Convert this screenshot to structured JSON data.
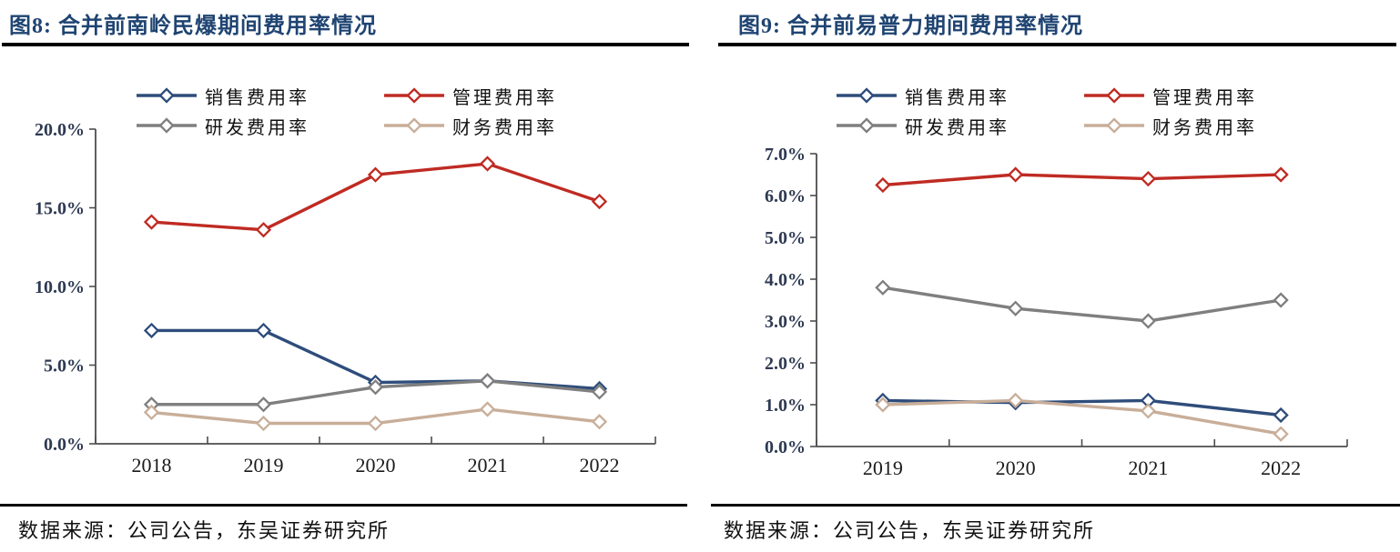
{
  "source_note": "数据来源：公司公告，东吴证券研究所",
  "colors": {
    "title_navy": "#1f4472",
    "axis_line": "#4d4d4d",
    "ytick_text": "#2e3a52",
    "xtick_text": "#1a1a1a",
    "rule_black": "#000000",
    "series_sales_blue": "#2e4d7b",
    "series_management_red": "#bf2b23",
    "series_rd_gray": "#7f7f7f",
    "series_finance_tan": "#c8ae99"
  },
  "chart_data": [
    {
      "type": "line",
      "title": "图8:  合并前南岭民爆期间费用率情况",
      "categories": [
        "2018",
        "2019",
        "2020",
        "2021",
        "2022"
      ],
      "series": [
        {
          "key": "sales-expense-ratio",
          "name": "销售费用率",
          "color": "#2e4d7b",
          "values": [
            7.2,
            7.2,
            3.9,
            4.0,
            3.5
          ]
        },
        {
          "key": "management-expense-ratio",
          "name": "管理费用率",
          "color": "#bf2b23",
          "values": [
            14.1,
            13.6,
            17.1,
            17.8,
            15.4
          ]
        },
        {
          "key": "rd-expense-ratio",
          "name": "研发费用率",
          "color": "#7f7f7f",
          "values": [
            2.5,
            2.5,
            3.6,
            4.0,
            3.3
          ]
        },
        {
          "key": "finance-expense-ratio",
          "name": "财务费用率",
          "color": "#c8ae99",
          "values": [
            2.0,
            1.3,
            1.3,
            2.2,
            1.4
          ]
        }
      ],
      "ylim": [
        0,
        20
      ],
      "ytick_step": 5,
      "ytick_labels": [
        "0.0%",
        "5.0%",
        "10.0%",
        "15.0%",
        "20.0%"
      ],
      "xlabel": "",
      "ylabel": "",
      "grid": false,
      "legend_position": "top",
      "marker": "open-diamond"
    },
    {
      "type": "line",
      "title": "图9:  合并前易普力期间费用率情况",
      "categories": [
        "2019",
        "2020",
        "2021",
        "2022"
      ],
      "series": [
        {
          "key": "sales-expense-ratio",
          "name": "销售费用率",
          "color": "#2e4d7b",
          "values": [
            1.1,
            1.05,
            1.1,
            0.75
          ]
        },
        {
          "key": "management-expense-ratio",
          "name": "管理费用率",
          "color": "#bf2b23",
          "values": [
            6.25,
            6.5,
            6.4,
            6.5
          ]
        },
        {
          "key": "rd-expense-ratio",
          "name": "研发费用率",
          "color": "#7f7f7f",
          "values": [
            3.8,
            3.3,
            3.0,
            3.5
          ]
        },
        {
          "key": "finance-expense-ratio",
          "name": "财务费用率",
          "color": "#c8ae99",
          "values": [
            1.0,
            1.1,
            0.85,
            0.3
          ]
        }
      ],
      "ylim": [
        0,
        7
      ],
      "ytick_step": 1,
      "ytick_labels": [
        "0.0%",
        "1.0%",
        "2.0%",
        "3.0%",
        "4.0%",
        "5.0%",
        "6.0%",
        "7.0%"
      ],
      "xlabel": "",
      "ylabel": "",
      "grid": false,
      "legend_position": "top",
      "marker": "open-diamond"
    }
  ]
}
